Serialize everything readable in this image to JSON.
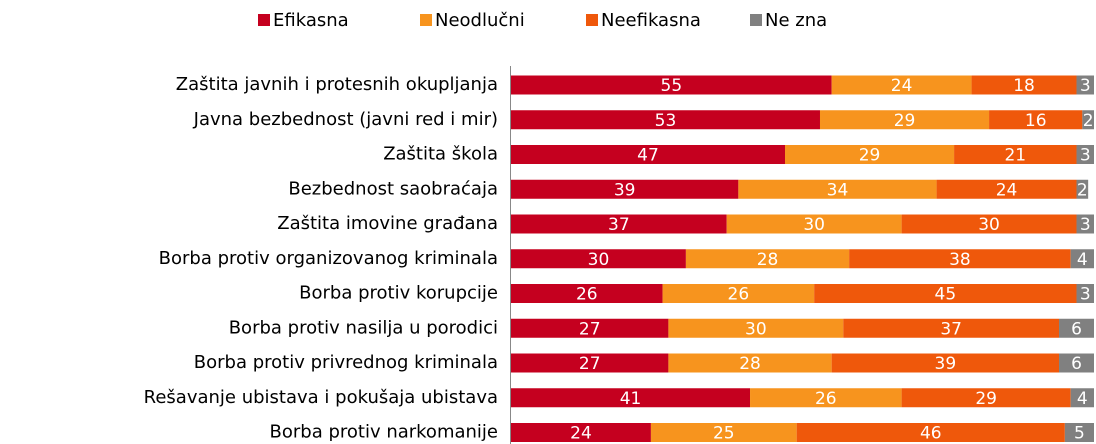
{
  "chart_data": {
    "type": "stacked_bar_horizontal",
    "categories": [
      "Zaštita javnih i protesnih okupljanja",
      "Javna bezbednost (javni red i mir)",
      "Zaštita škola",
      "Bezbednost saobraćaja",
      "Zaštita imovine građana",
      "Borba protiv organizovanog kriminala",
      "Borba protiv korupcije",
      "Borba protiv nasilja u porodici",
      "Borba protiv privrednog kriminala",
      "Rešavanje ubistava i pokušaja ubistava",
      "Borba protiv narkomanije"
    ],
    "series": [
      {
        "name": "Efikasna",
        "color": "#c5001f",
        "values": [
          55,
          53,
          47,
          39,
          37,
          30,
          26,
          27,
          27,
          41,
          24
        ]
      },
      {
        "name": "Neodlučni",
        "color": "#f7941e",
        "values": [
          24,
          29,
          29,
          34,
          30,
          28,
          26,
          30,
          28,
          26,
          25
        ]
      },
      {
        "name": "Neefikasna",
        "color": "#ef580b",
        "values": [
          18,
          16,
          21,
          24,
          30,
          38,
          45,
          37,
          39,
          29,
          46
        ]
      },
      {
        "name": "Ne zna",
        "color": "#808080",
        "values": [
          3,
          2,
          3,
          2,
          3,
          4,
          3,
          6,
          6,
          4,
          5
        ]
      }
    ],
    "xlim": [
      0,
      100
    ],
    "legend": "top"
  }
}
